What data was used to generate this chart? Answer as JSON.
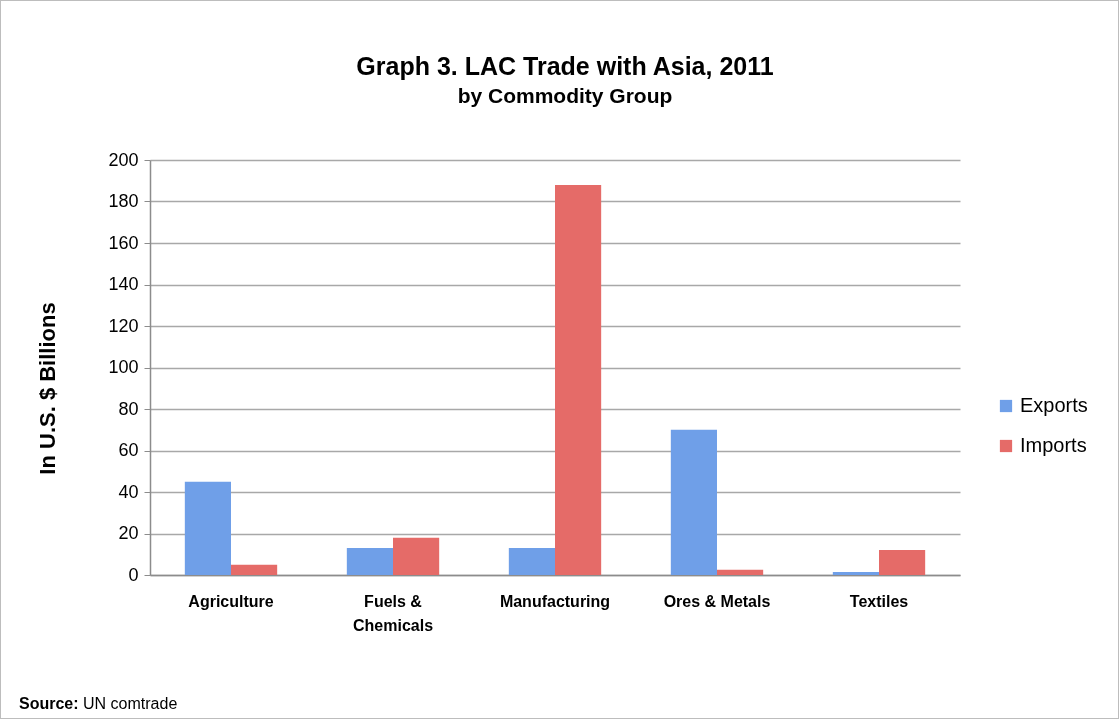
{
  "chart_data": {
    "type": "bar",
    "title": "Graph 3. LAC Trade with Asia, 2011",
    "subtitle": "by Commodity Group",
    "ylabel": "In U.S. $ Billions",
    "categories": [
      "Agriculture",
      "Fuels & Chemicals",
      "Manufacturing",
      "Ores & Metals",
      "Textiles"
    ],
    "series": [
      {
        "name": "Exports",
        "color": "#6f9fe8",
        "values": [
          45,
          13,
          13,
          70,
          1.5
        ]
      },
      {
        "name": "Imports",
        "color": "#e56b68",
        "values": [
          5,
          18,
          188,
          2.5,
          12
        ]
      }
    ],
    "ylim": [
      0,
      200
    ],
    "yticks": [
      0,
      20,
      40,
      60,
      80,
      100,
      120,
      140,
      160,
      180,
      200
    ],
    "grid": "y",
    "legend": "right",
    "annotations": [
      "Source: UN comtrade"
    ]
  }
}
